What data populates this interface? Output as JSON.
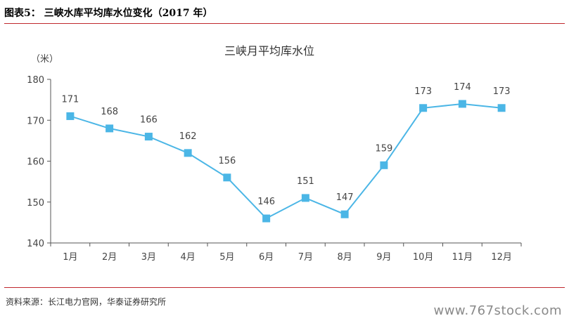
{
  "figure": {
    "title": "图表5：  三峡水库平均库水位变化（2017 年）",
    "source": "资料来源：长江电力官网，华泰证券研究所",
    "watermark": "www.767stock.com"
  },
  "chart_data": {
    "type": "line",
    "title": "三峡月平均库水位",
    "ylabel": "（米）",
    "xlabel": "",
    "categories": [
      "1月",
      "2月",
      "3月",
      "4月",
      "5月",
      "6月",
      "7月",
      "8月",
      "9月",
      "10月",
      "11月",
      "12月"
    ],
    "series": [
      {
        "values": [
          171,
          168,
          166,
          162,
          156,
          146,
          151,
          147,
          159,
          173,
          174,
          173
        ]
      }
    ],
    "ylim": [
      140,
      180
    ],
    "yticks": [
      140,
      150,
      160,
      170,
      180
    ],
    "grid": false,
    "color": "#4bb6e6",
    "marker": "square"
  }
}
